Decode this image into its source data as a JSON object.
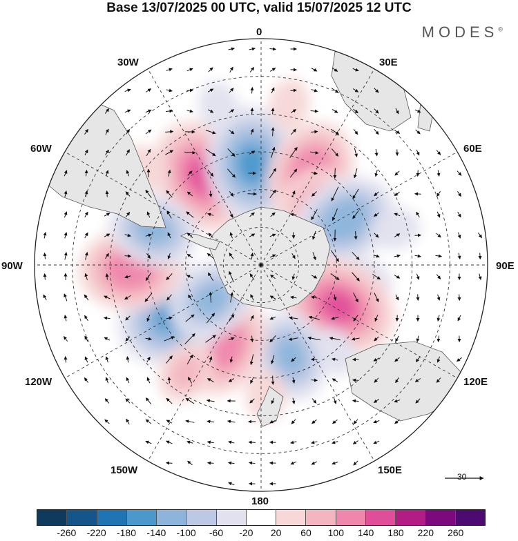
{
  "title": "Base 13/07/2025 00 UTC, valid 15/07/2025 12 UTC",
  "brand": "MODES",
  "brand_mark": "®",
  "longitude_labels": {
    "lon_0": "0",
    "lon_30e": "30E",
    "lon_60e": "60E",
    "lon_90e": "90E",
    "lon_120e": "120E",
    "lon_150e": "150E",
    "lon_180": "180",
    "lon_150w": "150W",
    "lon_120w": "120W",
    "lon_90w": "90W",
    "lon_60w": "60W",
    "lon_30w": "30W"
  },
  "reference_vector": {
    "label": "30"
  },
  "colorbar": {
    "ticks": [
      "-260",
      "-220",
      "-180",
      "-140",
      "-100",
      "-60",
      "-20",
      "20",
      "60",
      "100",
      "140",
      "180",
      "220",
      "260"
    ],
    "colors": [
      "#0e3a5e",
      "#14558a",
      "#1f75b4",
      "#4a98cc",
      "#8db5db",
      "#bcc8e4",
      "#e2e2ef",
      "#ffffff",
      "#f7d7d7",
      "#f3b6c0",
      "#ef86ac",
      "#e04e9a",
      "#b41c85",
      "#7d0a7d",
      "#4d0a70"
    ]
  },
  "features": {
    "anomalies": [
      {
        "lon": -33,
        "lat": -48,
        "value": 140
      },
      {
        "lon": -5,
        "lat": -50,
        "value": -140
      },
      {
        "lon": 28,
        "lat": -48,
        "value": 120
      },
      {
        "lon": 40,
        "lat": -58,
        "value": 80
      },
      {
        "lon": 62,
        "lat": -52,
        "value": -120
      },
      {
        "lon": 100,
        "lat": -50,
        "value": -60
      },
      {
        "lon": 118,
        "lat": -55,
        "value": 140
      },
      {
        "lon": 140,
        "lat": -45,
        "value": -40
      },
      {
        "lon": 162,
        "lat": -52,
        "value": -100
      },
      {
        "lon": -155,
        "lat": -55,
        "value": 120
      },
      {
        "lon": -120,
        "lat": -50,
        "value": -140
      },
      {
        "lon": -125,
        "lat": -66,
        "value": -100
      },
      {
        "lon": -92,
        "lat": -38,
        "value": 120
      },
      {
        "lon": -72,
        "lat": -45,
        "value": -100
      },
      {
        "lon": -145,
        "lat": -38,
        "value": 60
      },
      {
        "lon": 10,
        "lat": -25,
        "value": 40
      },
      {
        "lon": -15,
        "lat": -25,
        "value": -40
      },
      {
        "lon": 75,
        "lat": -35,
        "value": -40
      },
      {
        "lon": -50,
        "lat": -30,
        "value": 40
      },
      {
        "lon": 178,
        "lat": -38,
        "value": 40
      }
    ]
  }
}
